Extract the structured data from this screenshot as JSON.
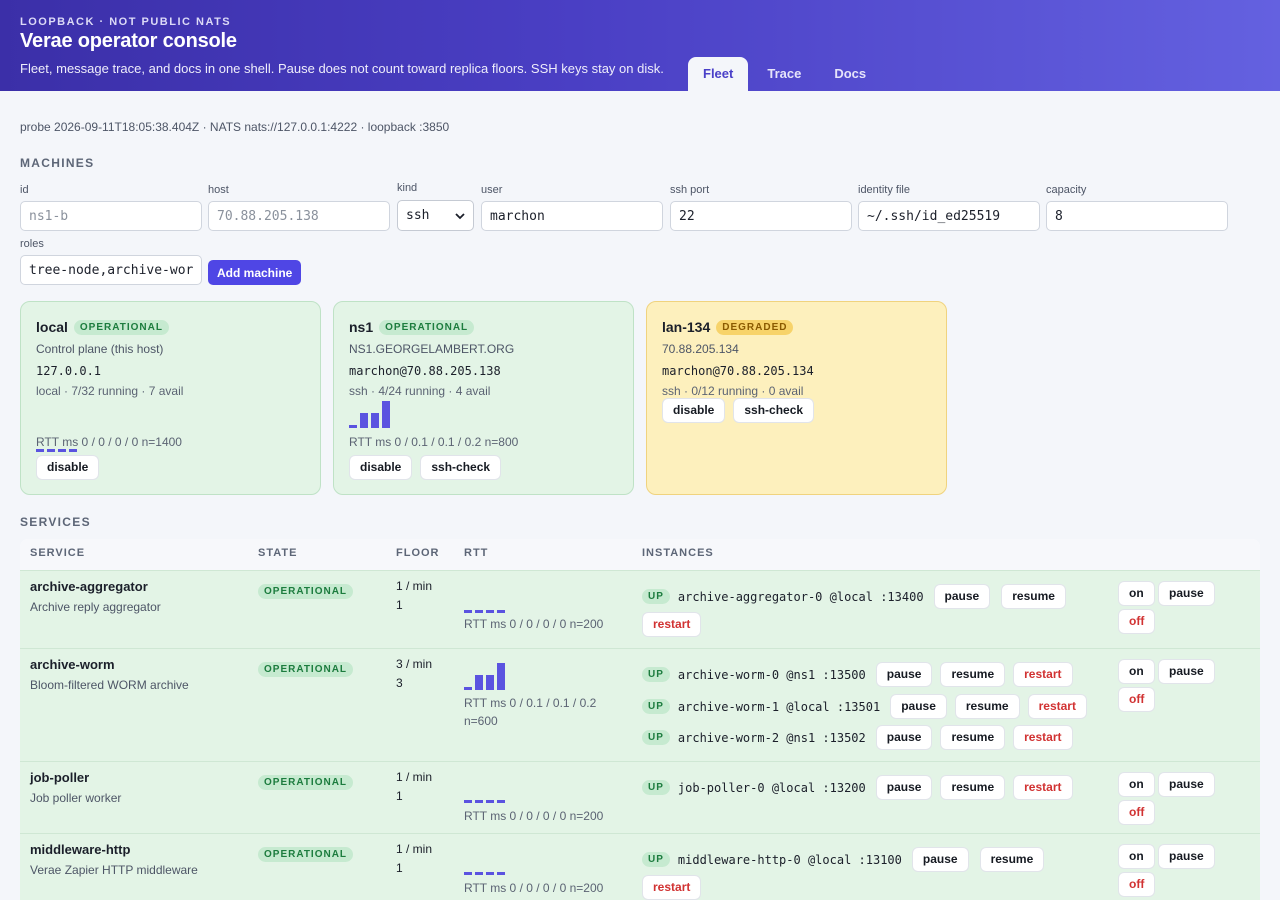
{
  "header": {
    "eyebrow": "LOOPBACK · NOT PUBLIC NATS",
    "title": "Verae operator console",
    "tagline": "Fleet, message trace, and docs in one shell. Pause does not count toward replica floors. SSH keys stay on disk.",
    "tabs": [
      "Fleet",
      "Trace",
      "Docs"
    ],
    "active_tab": "Fleet"
  },
  "probe": "probe 2026-09-11T18:05:38.404Z · NATS nats://127.0.0.1:4222 · loopback :3850",
  "machines": {
    "heading": "MACHINES",
    "form": {
      "id_label": "id",
      "id_placeholder": "ns1-b",
      "host_label": "host",
      "host_placeholder": "70.88.205.138",
      "kind_label": "kind",
      "kind_value": "ssh",
      "user_label": "user",
      "user_value": "marchon",
      "port_label": "ssh port",
      "port_value": "22",
      "identity_label": "identity file",
      "identity_value": "~/.ssh/id_ed25519",
      "capacity_label": "capacity",
      "capacity_value": "8",
      "roles_label": "roles",
      "roles_value": "tree-node,archive-worm",
      "add_label": "Add machine"
    },
    "cards": [
      {
        "name": "local",
        "status": "OPERATIONAL",
        "desc": "Control plane (this host)",
        "addr": "127.0.0.1",
        "meta": "local · 7/32 running · 7 avail",
        "rtt": "RTT ms 0 / 0 / 0 / 0 n=1400",
        "spark": [
          0,
          0,
          0,
          0
        ],
        "buttons": [
          "disable"
        ]
      },
      {
        "name": "ns1",
        "status": "OPERATIONAL",
        "desc": "NS1.GEORGELAMBERT.ORG",
        "addr": "marchon@70.88.205.138",
        "meta": "ssh · 4/24 running · 4 avail",
        "rtt": "RTT ms 0 / 0.1 / 0.1 / 0.2 n=800",
        "spark": [
          0,
          0.1,
          0.1,
          0.2
        ],
        "buttons": [
          "disable",
          "ssh-check"
        ]
      },
      {
        "name": "lan-134",
        "status": "DEGRADED",
        "desc": "70.88.205.134",
        "addr": "marchon@70.88.205.134",
        "meta": "ssh · 0/12 running · 0 avail",
        "buttons": [
          "disable",
          "ssh-check"
        ]
      }
    ]
  },
  "services": {
    "heading": "SERVICES",
    "columns": [
      "SERVICE",
      "STATE",
      "FLOOR",
      "RTT",
      "INSTANCES"
    ],
    "rows": [
      {
        "name": "archive-aggregator",
        "desc": "Archive reply aggregator",
        "state": "OPERATIONAL",
        "floor_rate": "1 / min",
        "floor_count": "1",
        "rtt_line1": "RTT ms 0 / 0 / 0 / 0 n=200",
        "rtt_line2": "",
        "spark": [
          0,
          0,
          0,
          0
        ],
        "instances": [
          {
            "status": "UP",
            "label": "archive-aggregator-0 @local :13400"
          }
        ]
      },
      {
        "name": "archive-worm",
        "desc": "Bloom-filtered WORM archive",
        "state": "OPERATIONAL",
        "floor_rate": "3 / min",
        "floor_count": "3",
        "rtt_line1": "RTT ms 0 / 0.1 / 0.1 / 0.2",
        "rtt_line2": "n=600",
        "spark": [
          0,
          0.1,
          0.1,
          0.2
        ],
        "instances": [
          {
            "status": "UP",
            "label": "archive-worm-0 @ns1 :13500"
          },
          {
            "status": "UP",
            "label": "archive-worm-1 @local :13501"
          },
          {
            "status": "UP",
            "label": "archive-worm-2 @ns1 :13502"
          }
        ]
      },
      {
        "name": "job-poller",
        "desc": "Job poller worker",
        "state": "OPERATIONAL",
        "floor_rate": "1 / min",
        "floor_count": "1",
        "rtt_line1": "RTT ms 0 / 0 / 0 / 0 n=200",
        "rtt_line2": "",
        "spark": [
          0,
          0,
          0,
          0
        ],
        "instances": [
          {
            "status": "UP",
            "label": "job-poller-0 @local :13200"
          }
        ]
      },
      {
        "name": "middleware-http",
        "desc": "Verae Zapier HTTP middleware",
        "state": "OPERATIONAL",
        "floor_rate": "1 / min",
        "floor_count": "1",
        "rtt_line1": "RTT ms 0 / 0 / 0 / 0 n=200",
        "rtt_line2": "",
        "spark": [
          0,
          0,
          0,
          0
        ],
        "instances": [
          {
            "status": "UP",
            "label": "middleware-http-0 @local :13100"
          }
        ]
      }
    ],
    "instance_buttons": {
      "pause": "pause",
      "resume": "resume",
      "restart": "restart"
    },
    "service_buttons": {
      "on": "on",
      "pause": "pause",
      "off": "off"
    }
  },
  "colors": {
    "accent": "#4f46e5",
    "operational_bg": "#e3f4e6",
    "degraded_bg": "#fdf0bd",
    "restart_red": "#d13232"
  }
}
